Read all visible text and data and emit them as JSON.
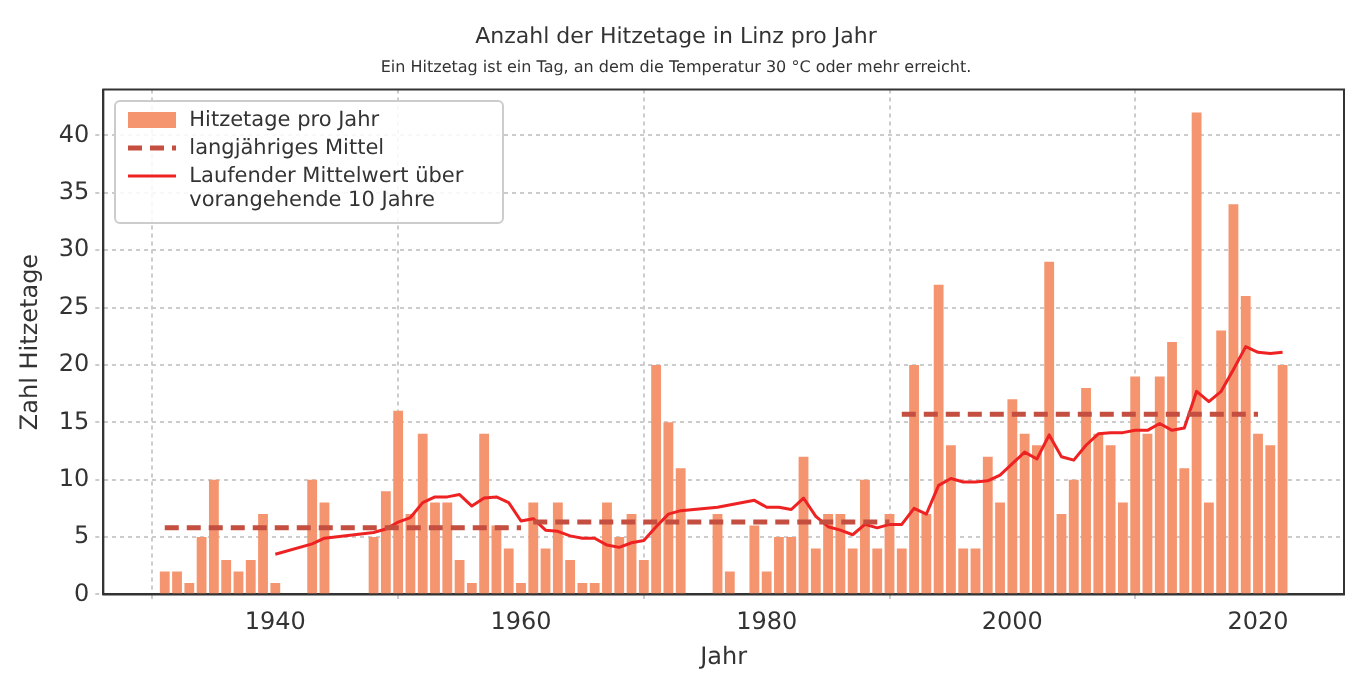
{
  "chart_data": {
    "type": "bar",
    "title": "Anzahl der Hitzetage in Linz pro Jahr",
    "subtitle": "Ein Hitzetag ist ein Tag, an dem die Temperatur 30 °C oder mehr erreicht.",
    "xlabel": "Jahr",
    "ylabel": "Zahl Hitzetage",
    "xlim": [
      1926,
      2027
    ],
    "xticks": [
      1940,
      1960,
      1980,
      2000,
      2020
    ],
    "ylim": [
      0,
      44
    ],
    "yticks": [
      0,
      5,
      10,
      15,
      20,
      25,
      30,
      35,
      40
    ],
    "grid": true,
    "legend": "top left",
    "series": [
      {
        "name": "Hitzetage pro Jahr",
        "color": "#f5956f",
        "x": [
          1931,
          1932,
          1933,
          1934,
          1935,
          1936,
          1937,
          1938,
          1939,
          1940,
          1943,
          1944,
          1948,
          1949,
          1950,
          1951,
          1952,
          1953,
          1954,
          1955,
          1956,
          1957,
          1958,
          1959,
          1960,
          1961,
          1962,
          1963,
          1964,
          1965,
          1966,
          1967,
          1968,
          1969,
          1970,
          1971,
          1972,
          1973,
          1976,
          1977,
          1979,
          1980,
          1981,
          1982,
          1983,
          1984,
          1985,
          1986,
          1987,
          1988,
          1989,
          1990,
          1991,
          1992,
          1993,
          1994,
          1995,
          1996,
          1997,
          1998,
          1999,
          2000,
          2001,
          2002,
          2003,
          2004,
          2005,
          2006,
          2007,
          2008,
          2009,
          2010,
          2011,
          2012,
          2013,
          2014,
          2015,
          2016,
          2017,
          2018,
          2019,
          2020,
          2021,
          2022
        ],
        "values": [
          2,
          2,
          1,
          5,
          10,
          3,
          2,
          3,
          7,
          1,
          10,
          8,
          5,
          9,
          16,
          7,
          14,
          8,
          8,
          3,
          1,
          14,
          6,
          4,
          1,
          8,
          4,
          8,
          3,
          1,
          1,
          8,
          5,
          7,
          3,
          20,
          15,
          11,
          7,
          2,
          6,
          2,
          5,
          5,
          12,
          4,
          7,
          7,
          4,
          10,
          4,
          7,
          4,
          20,
          7,
          27,
          13,
          4,
          4,
          12,
          8,
          17,
          14,
          13,
          29,
          7,
          10,
          18,
          14,
          13,
          8,
          19,
          14,
          19,
          22,
          11,
          42,
          8,
          23,
          34,
          26,
          14,
          13,
          20
        ]
      },
      {
        "name": "langjähriges Mittel",
        "type": "line",
        "line_style": "dashed",
        "color": "#c44e3f",
        "x": [
          1931,
          1960
        ],
        "values": [
          5.8,
          5.8
        ]
      },
      {
        "type": "line",
        "line_style": "dashed",
        "color": "#c44e3f",
        "x": [
          1961,
          1990
        ],
        "values": [
          6.3,
          6.3
        ]
      },
      {
        "type": "line",
        "line_style": "dashed",
        "color": "#c44e3f",
        "x": [
          1991,
          2020
        ],
        "values": [
          15.7,
          15.7
        ]
      },
      {
        "name": "Laufender Mittelwert über vorangehende 10 Jahre",
        "type": "line",
        "line_style": "solid",
        "color": "#ee2222",
        "x": [
          1940,
          1943,
          1944,
          1948,
          1949,
          1950,
          1951,
          1952,
          1953,
          1954,
          1955,
          1956,
          1957,
          1958,
          1959,
          1960,
          1961,
          1962,
          1963,
          1964,
          1965,
          1966,
          1967,
          1968,
          1969,
          1970,
          1971,
          1972,
          1973,
          1976,
          1979,
          1980,
          1981,
          1982,
          1983,
          1984,
          1985,
          1986,
          1987,
          1988,
          1989,
          1990,
          1991,
          1992,
          1993,
          1994,
          1995,
          1996,
          1997,
          1998,
          1999,
          2000,
          2001,
          2002,
          2003,
          2004,
          2005,
          2006,
          2007,
          2008,
          2009,
          2010,
          2011,
          2012,
          2013,
          2014,
          2015,
          2016,
          2017,
          2018,
          2019,
          2020,
          2021,
          2022
        ],
        "values": [
          3.5,
          4.4,
          4.9,
          5.4,
          5.7,
          6.3,
          6.7,
          8.0,
          8.5,
          8.5,
          8.7,
          7.7,
          8.4,
          8.5,
          8.0,
          6.4,
          6.6,
          5.6,
          5.5,
          5.1,
          4.9,
          4.9,
          4.3,
          4.1,
          4.5,
          4.7,
          5.9,
          7.0,
          7.3,
          7.6,
          8.2,
          7.6,
          7.6,
          7.4,
          8.4,
          6.8,
          5.9,
          5.6,
          5.2,
          6.1,
          5.8,
          6.1,
          6.1,
          7.5,
          7.0,
          9.5,
          10.1,
          9.8,
          9.8,
          9.9,
          10.4,
          11.4,
          12.4,
          11.8,
          13.9,
          12.0,
          11.7,
          13.0,
          14.0,
          14.1,
          14.1,
          14.3,
          14.3,
          14.9,
          14.3,
          14.5,
          17.7,
          16.8,
          17.7,
          19.6,
          21.6,
          21.1,
          21.0,
          21.1
        ]
      }
    ]
  }
}
